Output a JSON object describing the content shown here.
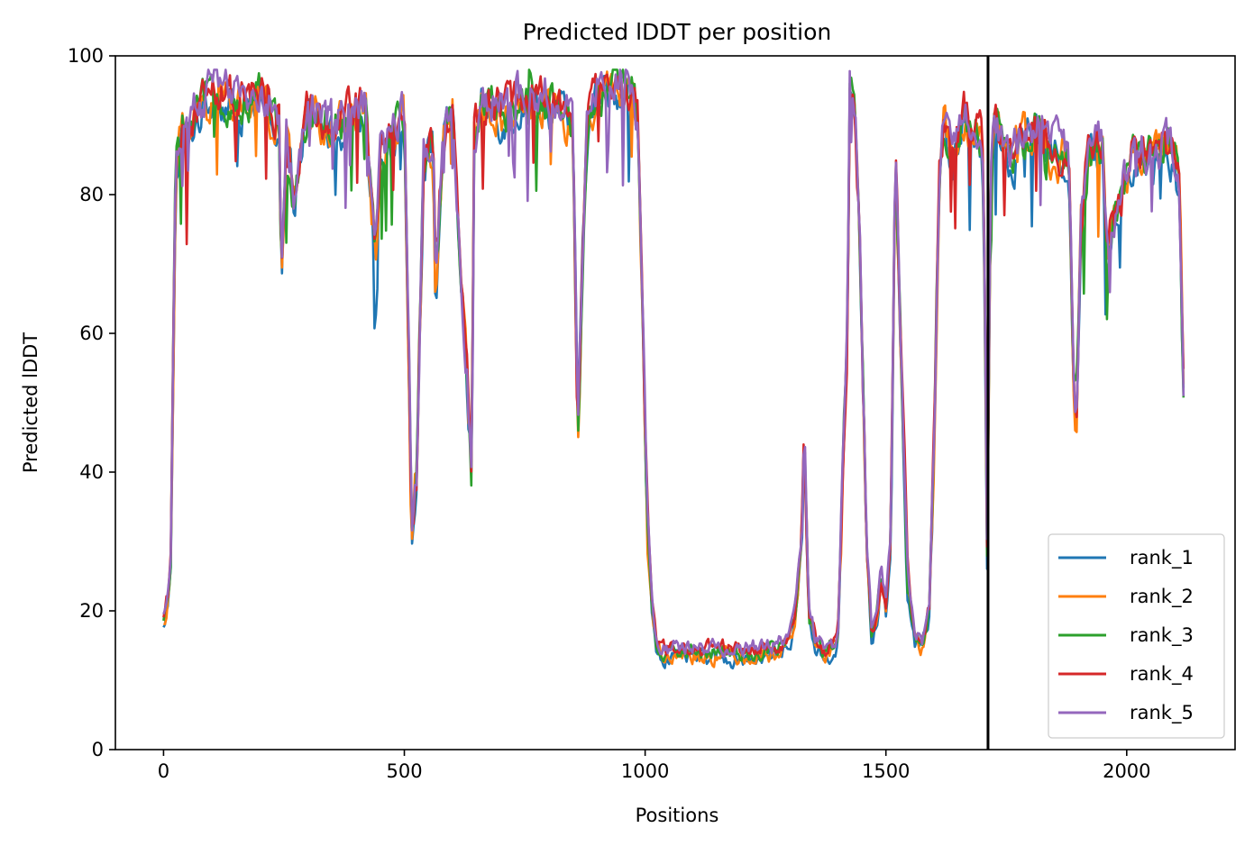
{
  "chart_data": {
    "type": "line",
    "title": "Predicted lDDT per position",
    "xlabel": "Positions",
    "ylabel": "Predicted lDDT",
    "xlim": [
      -100,
      2225
    ],
    "ylim": [
      0,
      100
    ],
    "xticks": [
      0,
      500,
      1000,
      1500,
      2000
    ],
    "yticks": [
      0,
      20,
      40,
      60,
      80,
      100
    ],
    "legend_position": "lower-right",
    "vertical_line_x": 1712,
    "series": [
      {
        "name": "rank_1",
        "color": "#1f77b4"
      },
      {
        "name": "rank_2",
        "color": "#ff7f0e"
      },
      {
        "name": "rank_3",
        "color": "#2ca02c"
      },
      {
        "name": "rank_4",
        "color": "#d62728"
      },
      {
        "name": "rank_5",
        "color": "#9467bd"
      }
    ],
    "profile_keypoints": {
      "x": [
        0,
        5,
        10,
        15,
        20,
        25,
        30,
        40,
        50,
        70,
        100,
        150,
        200,
        240,
        245,
        255,
        270,
        300,
        350,
        420,
        440,
        450,
        470,
        500,
        510,
        515,
        525,
        540,
        560,
        565,
        580,
        600,
        640,
        645,
        660,
        700,
        760,
        820,
        850,
        860,
        870,
        880,
        900,
        950,
        975,
        985,
        995,
        1005,
        1015,
        1025,
        1040,
        1100,
        1200,
        1250,
        1290,
        1310,
        1325,
        1330,
        1340,
        1355,
        1370,
        1400,
        1420,
        1425,
        1435,
        1445,
        1460,
        1470,
        1480,
        1490,
        1500,
        1510,
        1520,
        1530,
        1545,
        1560,
        1575,
        1590,
        1600,
        1610,
        1620,
        1640,
        1660,
        1680,
        1700,
        1705,
        1710,
        1718,
        1725,
        1740,
        1760,
        1800,
        1840,
        1880,
        1890,
        1895,
        1905,
        1920,
        1950,
        1960,
        1970,
        1990,
        2010,
        2050,
        2080,
        2100,
        2110,
        2120
      ],
      "y": [
        18,
        20,
        22,
        27,
        55,
        82,
        86,
        90,
        88,
        92,
        95,
        93,
        94,
        90,
        68,
        88,
        80,
        92,
        90,
        93,
        70,
        85,
        88,
        92,
        55,
        30,
        40,
        85,
        88,
        65,
        88,
        92,
        40,
        88,
        93,
        92,
        94,
        93,
        90,
        45,
        70,
        90,
        95,
        96,
        95,
        90,
        60,
        32,
        20,
        15,
        14,
        14,
        14,
        14,
        15,
        18,
        30,
        45,
        20,
        15,
        14,
        15,
        60,
        95,
        92,
        75,
        30,
        17,
        18,
        25,
        20,
        30,
        88,
        60,
        25,
        16,
        15,
        20,
        45,
        82,
        90,
        85,
        92,
        90,
        88,
        70,
        28,
        85,
        90,
        88,
        85,
        90,
        87,
        85,
        55,
        48,
        75,
        86,
        87,
        70,
        75,
        80,
        85,
        85,
        87,
        86,
        80,
        45
      ]
    }
  }
}
